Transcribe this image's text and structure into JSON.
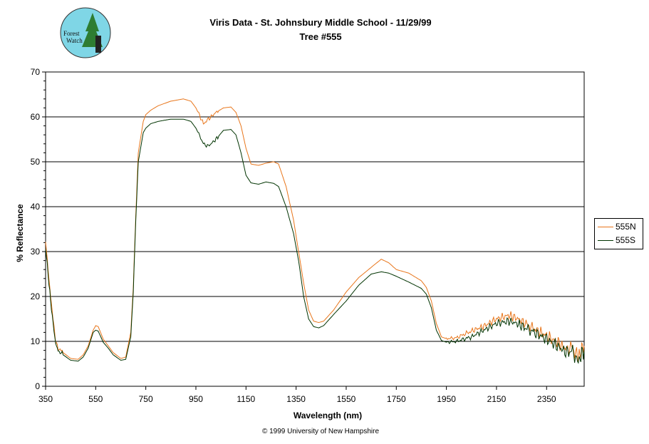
{
  "logo": {
    "text_line1": "Forest",
    "text_line2": "Watch"
  },
  "footer": {
    "copyright": "© 1999 University of New Hampshire"
  },
  "colors": {
    "555N": "#e8751a",
    "555S": "#003300",
    "gridline": "#000000"
  },
  "chart_data": {
    "type": "line",
    "title": "Viris Data - St. Johnsbury Middle School - 11/29/99",
    "subtitle": "Tree #555",
    "xlabel": "Wavelength (nm)",
    "ylabel": "% Reflectance",
    "xlim": [
      350,
      2500
    ],
    "ylim": [
      0,
      70
    ],
    "x_ticks": [
      350,
      550,
      750,
      950,
      1150,
      1350,
      1550,
      1750,
      1950,
      2150,
      2350
    ],
    "y_ticks": [
      0,
      10,
      20,
      30,
      40,
      50,
      60,
      70
    ],
    "grid": "horizontal major",
    "legend_position": "right",
    "series": [
      {
        "name": "555N",
        "color": "#e8751a",
        "x": [
          350,
          360,
          370,
          380,
          390,
          400,
          420,
          450,
          480,
          500,
          520,
          540,
          550,
          560,
          580,
          600,
          620,
          650,
          670,
          690,
          700,
          710,
          720,
          740,
          750,
          770,
          800,
          850,
          900,
          930,
          950,
          980,
          1000,
          1030,
          1060,
          1090,
          1110,
          1130,
          1150,
          1170,
          1200,
          1230,
          1260,
          1280,
          1310,
          1340,
          1360,
          1380,
          1400,
          1420,
          1440,
          1460,
          1500,
          1550,
          1600,
          1650,
          1690,
          1720,
          1750,
          1800,
          1850,
          1870,
          1890,
          1910,
          1930,
          1950,
          1990,
          2050,
          2100,
          2150,
          2200,
          2230,
          2260,
          2300,
          2350,
          2400,
          2430,
          2450,
          2470,
          2480,
          2490,
          2500
        ],
        "y": [
          32.5,
          26,
          20,
          15,
          10,
          8.5,
          7.5,
          6.2,
          6.0,
          7.0,
          9.0,
          12.5,
          13.5,
          13.3,
          10.5,
          9.0,
          7.5,
          6.2,
          6.5,
          12,
          22,
          38,
          52,
          59,
          60.5,
          61.5,
          62.5,
          63.5,
          64,
          63.5,
          62,
          58.5,
          59.5,
          61,
          62,
          62.2,
          61,
          58,
          53,
          49.5,
          49.2,
          49.7,
          50,
          49.5,
          44.5,
          37,
          30,
          23,
          17,
          14.5,
          14.2,
          14.5,
          17,
          21,
          24.2,
          26.5,
          28.3,
          27.5,
          26,
          25.2,
          23.5,
          22,
          19,
          14,
          11,
          10.6,
          10.8,
          12.3,
          13.4,
          15,
          15.8,
          15.2,
          14.2,
          12.8,
          11.2,
          9.5,
          8.2,
          8.8,
          7.0,
          6.5,
          8.5,
          9.0
        ]
      },
      {
        "name": "555S",
        "color": "#003300",
        "x": [
          350,
          360,
          370,
          380,
          390,
          400,
          420,
          450,
          480,
          500,
          520,
          540,
          550,
          560,
          580,
          600,
          620,
          650,
          670,
          690,
          700,
          710,
          720,
          740,
          750,
          770,
          800,
          850,
          900,
          930,
          950,
          980,
          1000,
          1030,
          1060,
          1090,
          1110,
          1130,
          1150,
          1170,
          1200,
          1230,
          1260,
          1280,
          1310,
          1340,
          1360,
          1380,
          1400,
          1420,
          1440,
          1460,
          1500,
          1550,
          1600,
          1650,
          1690,
          1720,
          1750,
          1800,
          1850,
          1870,
          1890,
          1910,
          1930,
          1950,
          1990,
          2050,
          2100,
          2150,
          2200,
          2230,
          2260,
          2300,
          2350,
          2400,
          2430,
          2450,
          2470,
          2480,
          2490,
          2500
        ],
        "y": [
          31,
          25,
          19,
          14,
          9.5,
          8.0,
          7.0,
          5.8,
          5.6,
          6.5,
          8.5,
          12.0,
          12.5,
          12.3,
          9.8,
          8.5,
          7.0,
          5.8,
          6.0,
          11,
          21,
          37,
          50,
          56.5,
          57.5,
          58.5,
          59,
          59.5,
          59.5,
          59,
          57.5,
          54,
          53.5,
          55,
          57,
          57.2,
          56,
          52,
          47,
          45.3,
          45,
          45.5,
          45.2,
          44.5,
          40,
          34,
          28,
          20,
          15,
          13.3,
          13,
          13.5,
          16,
          19,
          22.5,
          25,
          25.5,
          25.2,
          24.5,
          23.2,
          21.8,
          20.5,
          17.5,
          12.5,
          10.2,
          9.8,
          10,
          11,
          12.5,
          14.0,
          14.5,
          14.0,
          13.2,
          12.0,
          10.5,
          8.7,
          7.5,
          8.0,
          6.2,
          5.5,
          7.5,
          8.0
        ]
      }
    ]
  }
}
